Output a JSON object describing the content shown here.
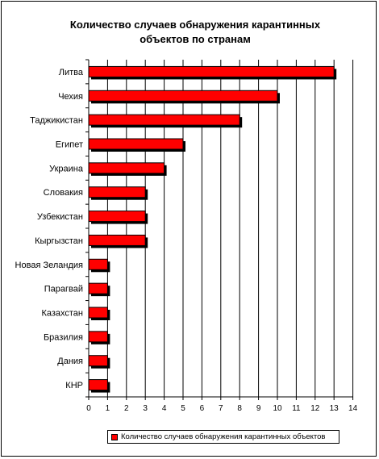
{
  "chart_data": {
    "type": "bar",
    "orientation": "horizontal",
    "title": "Количество случаев обнаружения карантинных\nобъектов по странам",
    "categories": [
      "Литва",
      "Чехия",
      "Таджикистан",
      "Египет",
      "Украина",
      "Словакия",
      "Узбекистан",
      "Кыргызстан",
      "Новая Зеландия",
      "Парагвай",
      "Казахстан",
      "Бразилия",
      "Дания",
      "КНР"
    ],
    "series": [
      {
        "name": "Количество случаев обнаружения карантинных объектов",
        "values": [
          13,
          10,
          8,
          5,
          4,
          3,
          3,
          3,
          1,
          1,
          1,
          1,
          1,
          1
        ],
        "color": "#ff0000"
      }
    ],
    "x_ticks": [
      "0",
      "1",
      "2",
      "3",
      "4",
      "5",
      "6",
      "7",
      "8",
      "9",
      "10",
      "11",
      "12",
      "13",
      "14"
    ],
    "xlim": [
      0,
      14
    ],
    "grid": "vertical",
    "legend_position": "bottom",
    "bar_shadow_color": "#000000"
  }
}
